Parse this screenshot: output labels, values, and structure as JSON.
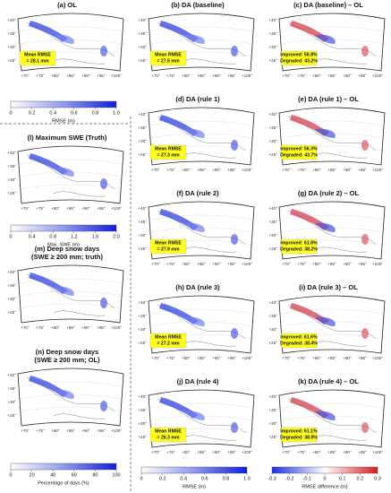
{
  "panels": [
    {
      "title": [
        "(a) OL"
      ],
      "annotation": [
        "Mean RMSE",
        "= 28.1 mm"
      ]
    },
    {
      "title": [
        "(b) DA (baseline)"
      ],
      "annotation": [
        "Mean RMSE",
        "= 27.5 mm"
      ]
    },
    {
      "title": [
        "(c) DA (baseline) – OL"
      ],
      "annotation": [
        "Improved: 56.8%",
        "Degraded: 43.2%"
      ]
    },
    {
      "title": [
        "(d) DA (rule 1)"
      ],
      "annotation": [
        "Mean RMSE",
        "= 27.3 mm"
      ]
    },
    {
      "title": [
        "(e) DA (rule 1) – OL"
      ],
      "annotation": [
        "Improved: 56.3%",
        "Degraded: 43.7%"
      ]
    },
    {
      "title": [
        "(f) DA (rule 2)"
      ],
      "annotation": [
        "Mean RMSE",
        "= 27.9 mm"
      ]
    },
    {
      "title": [
        "(g) DA (rule 2) – OL"
      ],
      "annotation": [
        "Improved: 61.8%",
        "Degraded: 38.2%"
      ]
    },
    {
      "title": [
        "(h) DA (rule 3)"
      ],
      "annotation": [
        "Mean RMSE",
        "= 27.2 mm"
      ]
    },
    {
      "title": [
        "(i) DA (rule 3) – OL"
      ],
      "annotation": [
        "Improved: 61.6%",
        "Degraded: 38.4%"
      ]
    },
    {
      "title": [
        "(j) DA (rule 4)"
      ],
      "annotation": [
        "Mean RMSE",
        "= 26.3 mm"
      ]
    },
    {
      "title": [
        "(k) DA (rule 4) – OL"
      ],
      "annotation": [
        "Improved: 61.1%",
        "Degraded: 38.9%"
      ]
    },
    {
      "title": [
        "(l) Maximum SWE (Truth)"
      ]
    },
    {
      "title": [
        "(m) Deep snow days",
        "(SWE ≥ 200 mm; truth)"
      ]
    },
    {
      "title": [
        "(n) Deep snow days",
        "(SWE ≥ 200 mm; OL)"
      ]
    }
  ],
  "lat_labels": [
    "+40°",
    "+35°",
    "+30°",
    "+25°"
  ],
  "lon_labels": [
    "+70°",
    "+75°",
    "+80°",
    "+85°",
    "+90°",
    "+95°",
    "+100°"
  ],
  "colorbars": [
    {
      "label": "RMSE (m)",
      "lim": [
        0,
        1
      ],
      "ticks": [
        0,
        0.2,
        0.4,
        0.6,
        0.8,
        {
          "value": 1,
          "label": "1.0"
        }
      ]
    },
    {
      "label": "Max. SWE (m)",
      "lim": [
        0,
        2
      ],
      "ticks": [
        0,
        0.4,
        0.8,
        1.2,
        1.6,
        {
          "value": 2,
          "label": "2.0"
        }
      ]
    },
    {
      "label": "Percentage of days (%)",
      "lim": [
        0,
        100
      ],
      "ticks": [
        0,
        20,
        40,
        60,
        80,
        100
      ]
    },
    {
      "label": "RMSE (m)",
      "lim": [
        0,
        1
      ],
      "ticks": [
        0,
        0.2,
        0.4,
        0.6,
        0.8,
        {
          "value": 1,
          "label": "1.0"
        }
      ]
    },
    {
      "label": "RMSE difference (m)",
      "lim": [
        -0.3,
        0.3
      ],
      "ticks": [
        -0.3,
        -0.2,
        -0.1,
        0,
        0.1,
        0.2,
        0.3
      ]
    }
  ]
}
